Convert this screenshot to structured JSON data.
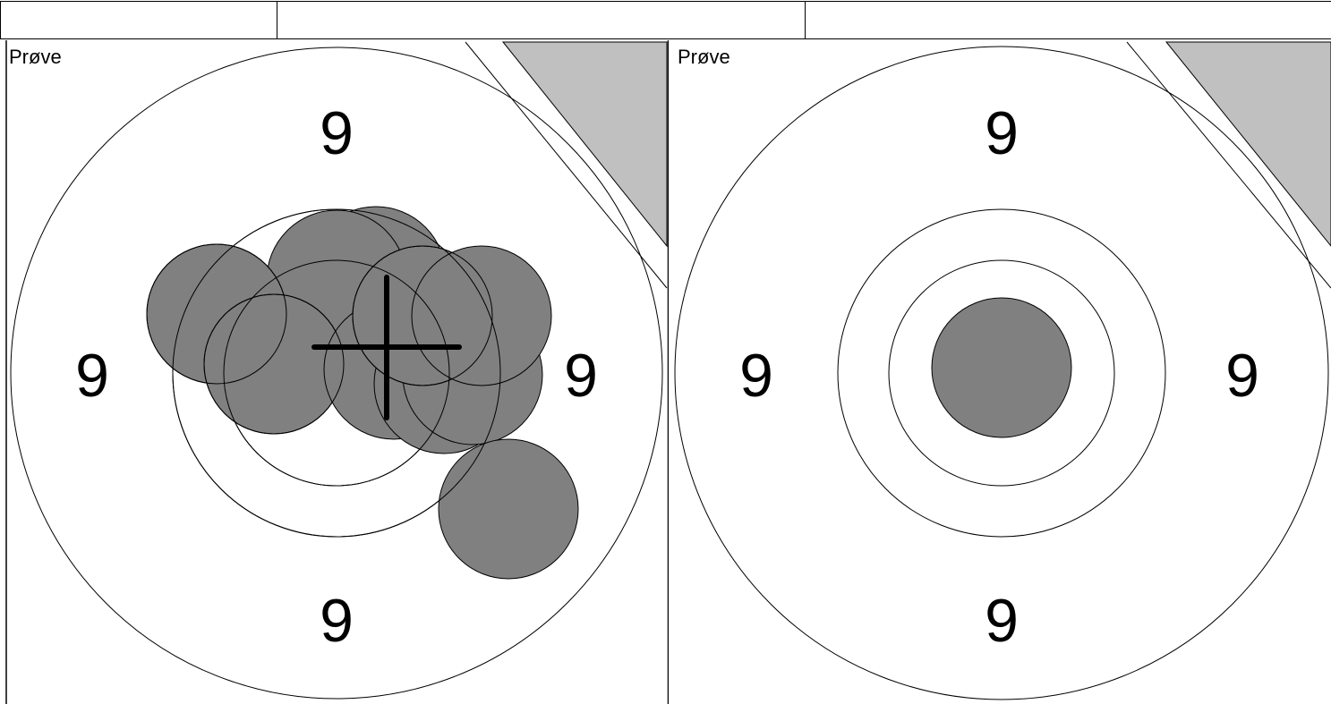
{
  "header": {
    "cells": [
      "",
      "",
      ""
    ]
  },
  "panels": [
    {
      "label": "Prøve",
      "ring_numbers": {
        "top": "9",
        "bottom": "9",
        "left": "9",
        "right": "9"
      },
      "shot_count": 11,
      "has_crosshair": true
    },
    {
      "label": "Prøve",
      "ring_numbers": {
        "top": "9",
        "bottom": "9",
        "left": "9",
        "right": "9"
      },
      "shot_count": 1,
      "has_crosshair": false
    }
  ],
  "colors": {
    "line": "#000000",
    "shot_fill": "#808080",
    "corner_marker": "#c0c0c0",
    "background": "#ffffff"
  }
}
